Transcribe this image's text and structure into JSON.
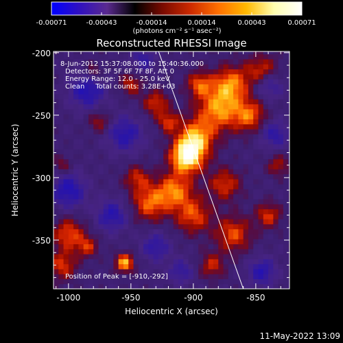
{
  "colorbar": {
    "tick_labels": [
      "-0.00071",
      "-0.00043",
      "-0.00014",
      "0.00014",
      "0.00043",
      "0.00071"
    ],
    "units_label": "(photons cm⁻² s⁻¹ asec⁻²)",
    "colormap": [
      "#0000ff",
      "#3010c0",
      "#5a2a8f",
      "#000000",
      "#7a0a00",
      "#cc2a00",
      "#ff7000",
      "#ffb800",
      "#ffffb0",
      "#ffffff"
    ]
  },
  "image": {
    "title": "Reconstructed RHESSI Image",
    "info_lines": [
      "8-Jun-2012 15:37:08.000 to 15:40:36.000",
      "Detectors: 3F 5F 6F 7F 8F, Att 0",
      "Energy Range: 12.0 - 25.0 keV",
      "Clean     Total counts: 3.28E+03"
    ],
    "peak_label": "Position of Peak = [-910,-292]",
    "limb_line": "solar-limb-line",
    "blobs": [
      {
        "x": -905,
        "y": -283,
        "r": 9,
        "v": 1.0
      },
      {
        "x": -898,
        "y": -268,
        "r": 10,
        "v": 0.7
      },
      {
        "x": -880,
        "y": -245,
        "r": 12,
        "v": 0.65
      },
      {
        "x": -870,
        "y": -225,
        "r": 10,
        "v": 0.6
      },
      {
        "x": -855,
        "y": -250,
        "r": 9,
        "v": 0.55
      },
      {
        "x": -845,
        "y": -215,
        "r": 9,
        "v": 0.5
      },
      {
        "x": -895,
        "y": -225,
        "r": 7,
        "v": 0.5
      },
      {
        "x": -915,
        "y": -310,
        "r": 10,
        "v": 0.6
      },
      {
        "x": -935,
        "y": -320,
        "r": 10,
        "v": 0.55
      },
      {
        "x": -900,
        "y": -330,
        "r": 10,
        "v": 0.5
      },
      {
        "x": -875,
        "y": -305,
        "r": 9,
        "v": 0.45
      },
      {
        "x": -868,
        "y": -345,
        "r": 10,
        "v": 0.5
      },
      {
        "x": -840,
        "y": -330,
        "r": 7,
        "v": 0.45
      },
      {
        "x": -885,
        "y": -370,
        "r": 7,
        "v": 0.4
      },
      {
        "x": -1000,
        "y": -345,
        "r": 9,
        "v": 0.5
      },
      {
        "x": -1005,
        "y": -370,
        "r": 8,
        "v": 0.45
      },
      {
        "x": -985,
        "y": -355,
        "r": 6,
        "v": 0.4
      },
      {
        "x": -955,
        "y": -368,
        "r": 5,
        "v": 0.75
      },
      {
        "x": -975,
        "y": -255,
        "r": 6,
        "v": 0.35
      },
      {
        "x": -950,
        "y": -225,
        "r": 6,
        "v": 0.4
      },
      {
        "x": -930,
        "y": -240,
        "r": 7,
        "v": 0.45
      },
      {
        "x": -920,
        "y": -255,
        "r": 6,
        "v": 0.45
      },
      {
        "x": -945,
        "y": -300,
        "r": 7,
        "v": 0.4
      },
      {
        "x": -832,
        "y": -290,
        "r": 6,
        "v": 0.35
      },
      {
        "x": -980,
        "y": -215,
        "r": 5,
        "v": 0.3
      },
      {
        "x": -1005,
        "y": -290,
        "r": 5,
        "v": 0.3
      },
      {
        "x": -985,
        "y": -230,
        "r": -10,
        "v": -0.5
      },
      {
        "x": -955,
        "y": -265,
        "r": -10,
        "v": -0.45
      },
      {
        "x": -1000,
        "y": -310,
        "r": -10,
        "v": -0.5
      },
      {
        "x": -965,
        "y": -330,
        "r": -9,
        "v": -0.45
      },
      {
        "x": -930,
        "y": -355,
        "r": -8,
        "v": -0.4
      },
      {
        "x": -840,
        "y": -225,
        "r": -8,
        "v": -0.45
      },
      {
        "x": -835,
        "y": -265,
        "r": -8,
        "v": -0.4
      },
      {
        "x": -845,
        "y": -375,
        "r": -8,
        "v": -0.45
      },
      {
        "x": -910,
        "y": -375,
        "r": -7,
        "v": -0.35
      },
      {
        "x": -940,
        "y": -205,
        "r": -7,
        "v": -0.35
      }
    ]
  },
  "axes": {
    "x_label": "Heliocentric X (arcsec)",
    "y_label": "Heliocentric Y (arcsec)",
    "x_range": [
      -1012,
      -823
    ],
    "y_range": [
      -389,
      -199
    ],
    "x_ticks": [
      -1000,
      -950,
      -900,
      -850
    ],
    "x_tick_labels": [
      "-1000",
      "-950",
      "-900",
      "-850"
    ],
    "y_ticks": [
      -200,
      -250,
      -300,
      -350
    ],
    "y_tick_labels": [
      "-200",
      "-250",
      "-300",
      "-350"
    ]
  },
  "footer": {
    "timestamp": "11-May-2022 13:09"
  }
}
